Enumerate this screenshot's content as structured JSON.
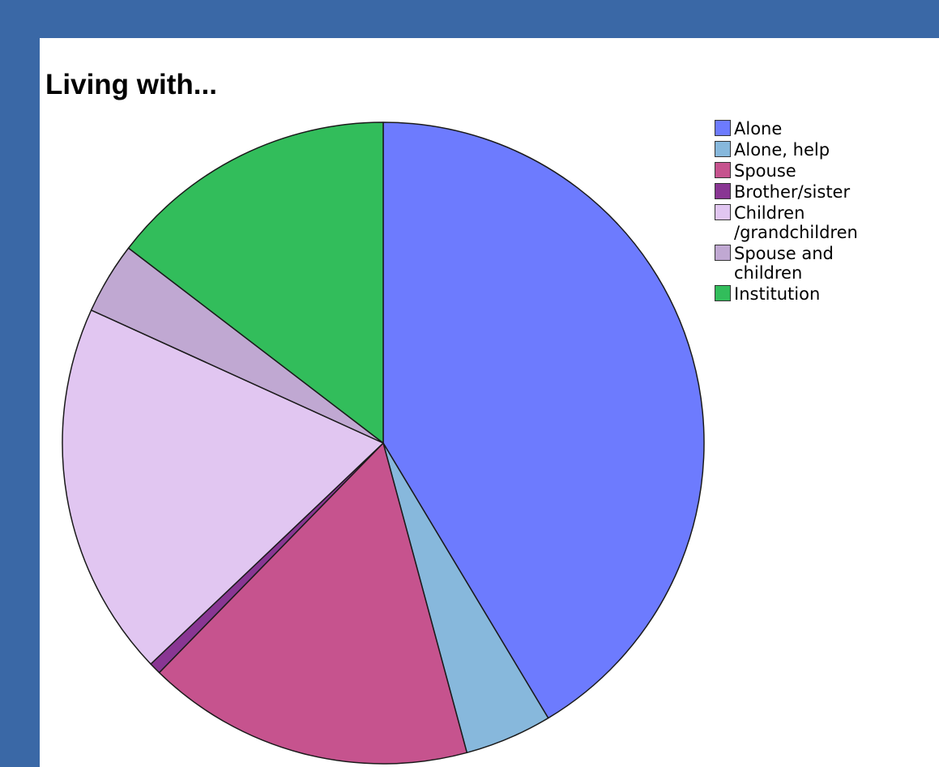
{
  "chart_data": {
    "type": "pie",
    "title": "Living with...",
    "legend_position": "right",
    "start_angle_deg": 0,
    "direction": "clockwise",
    "unit": "percent",
    "slices": [
      {
        "label": "Alone",
        "value": 41.4,
        "color": "#6d7bfe"
      },
      {
        "label": "Alone, help",
        "value": 4.4,
        "color": "#87b8dc"
      },
      {
        "label": "Spouse",
        "value": 16.5,
        "color": "#c6538e"
      },
      {
        "label": "Brother/sister",
        "value": 0.6,
        "color": "#893693"
      },
      {
        "label": "Children\n/grandchildren",
        "value": 18.9,
        "color": "#e1c6f1"
      },
      {
        "label": "Spouse and\nchildren",
        "value": 3.6,
        "color": "#c0a8d2"
      },
      {
        "label": "Institution",
        "value": 14.6,
        "color": "#32bd5b"
      }
    ]
  }
}
